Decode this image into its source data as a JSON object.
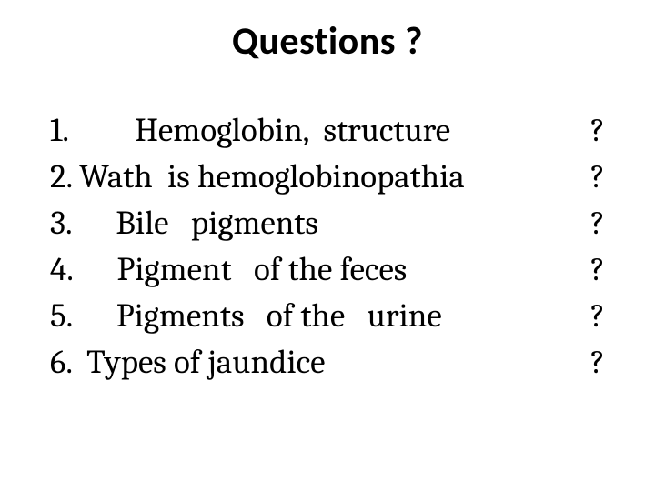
{
  "title": "Questions  ?",
  "title_fontsize": 42,
  "title_fontweight": 600,
  "body_fontsize": 37,
  "background_color": "#ffffff",
  "text_color": "#000000",
  "questions": [
    {
      "text": "1.         Hemoglobin,  structure",
      "mark": " ?"
    },
    {
      "text": "2. Wath  is hemoglobinopathia",
      "mark": "?"
    },
    {
      "text": "3.      Bile   pigments",
      "mark": "?"
    },
    {
      "text": "4.      Pigment   of the feces",
      "mark": " ?"
    },
    {
      "text": "5.      Pigments   of the   urine",
      "mark": "?"
    },
    {
      "text": "6.  Types of jaundice",
      "mark": "?"
    }
  ]
}
